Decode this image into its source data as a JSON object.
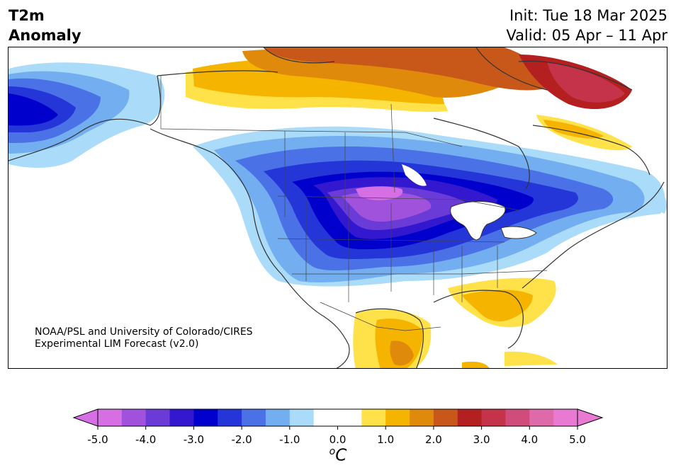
{
  "header": {
    "title_line1": "T2m",
    "title_line2": "Anomaly",
    "init": "Init: Tue 18 Mar 2025",
    "valid": "Valid: 05 Apr – 11 Apr"
  },
  "credit": {
    "line1": "NOAA/PSL and University of Colorado/CIRES",
    "line2": "Experimental LIM Forecast (v2.0)"
  },
  "colorbar": {
    "unit": "C",
    "unit_prefix": "o",
    "ticks": [
      "-5.0",
      "-4.0",
      "-3.0",
      "-2.0",
      "-1.0",
      "0.0",
      "1.0",
      "2.0",
      "3.0",
      "4.0",
      "5.0"
    ],
    "colors": [
      "#d56fe3",
      "#a052dd",
      "#6b3bd8",
      "#3418d0",
      "#0000cd",
      "#2536d8",
      "#4a72e6",
      "#73aef0",
      "#aadcfa",
      "#ffffff",
      "#ffffff",
      "#ffe14a",
      "#f5b400",
      "#e08a0c",
      "#c8581a",
      "#b42020",
      "#c4334a",
      "#d04d7b",
      "#de6aaa",
      "#e87ad4"
    ],
    "over_color": "#e87ad4",
    "under_color": "#d56fe3"
  }
}
